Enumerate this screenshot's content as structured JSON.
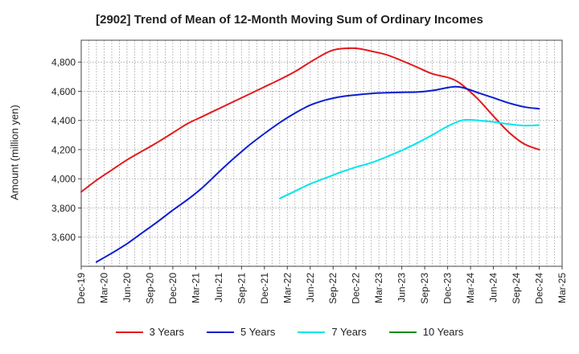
{
  "chart_data": {
    "type": "line",
    "title": "[2902]  Trend of Mean of 12-Month Moving Sum of Ordinary Incomes",
    "xlabel": "",
    "ylabel": "Amount (million yen)",
    "ylim": [
      3400,
      4950
    ],
    "yticks": [
      3600,
      3800,
      4000,
      4200,
      4400,
      4600,
      4800
    ],
    "ytick_labels": [
      "3,600",
      "3,800",
      "4,000",
      "4,200",
      "4,400",
      "4,600",
      "4,800"
    ],
    "xlim": [
      0,
      63
    ],
    "xticks": [
      0,
      3,
      6,
      9,
      12,
      15,
      18,
      21,
      24,
      27,
      30,
      33,
      36,
      39,
      42,
      45,
      48,
      51,
      54,
      57,
      60,
      63
    ],
    "xtick_labels": [
      "Dec-19",
      "Mar-20",
      "Jun-20",
      "Sep-20",
      "Dec-20",
      "Mar-21",
      "Jun-21",
      "Sep-21",
      "Dec-21",
      "Mar-22",
      "Jun-22",
      "Sep-22",
      "Dec-22",
      "Mar-23",
      "Jun-23",
      "Sep-23",
      "Dec-23",
      "Mar-24",
      "Jun-24",
      "Sep-24",
      "Dec-24",
      "Mar-25"
    ],
    "grid": true,
    "legend_position": "bottom",
    "series": [
      {
        "name": "3 Years",
        "color": "#e31a1c",
        "x": [
          0,
          2,
          4,
          6,
          8,
          10,
          12,
          14,
          16,
          18,
          20,
          22,
          24,
          26,
          28,
          30,
          32,
          33,
          34,
          36,
          38,
          40,
          42,
          44,
          46,
          48,
          49,
          50,
          52,
          54,
          56,
          58,
          60
        ],
        "values": [
          3910,
          3990,
          4060,
          4130,
          4190,
          4250,
          4315,
          4380,
          4430,
          4480,
          4530,
          4580,
          4630,
          4680,
          4735,
          4800,
          4860,
          4882,
          4892,
          4895,
          4875,
          4850,
          4810,
          4765,
          4720,
          4695,
          4675,
          4640,
          4545,
          4430,
          4320,
          4240,
          4200
        ]
      },
      {
        "name": "5 Years",
        "color": "#0a1ed0",
        "x": [
          2,
          4,
          6,
          8,
          10,
          12,
          14,
          16,
          18,
          20,
          22,
          24,
          26,
          28,
          30,
          32,
          34,
          36,
          38,
          40,
          42,
          44,
          46,
          48,
          49,
          50,
          52,
          54,
          56,
          58,
          60
        ],
        "values": [
          3430,
          3490,
          3555,
          3630,
          3705,
          3785,
          3860,
          3945,
          4045,
          4140,
          4230,
          4310,
          4385,
          4450,
          4505,
          4540,
          4563,
          4575,
          4585,
          4590,
          4593,
          4595,
          4605,
          4625,
          4632,
          4625,
          4590,
          4555,
          4520,
          4493,
          4480
        ]
      },
      {
        "name": "7 Years",
        "color": "#00e5ee",
        "x": [
          26,
          28,
          30,
          32,
          34,
          36,
          38,
          40,
          42,
          44,
          46,
          48,
          50,
          52,
          54,
          56,
          58,
          60
        ],
        "values": [
          3865,
          3915,
          3965,
          4005,
          4045,
          4080,
          4110,
          4150,
          4195,
          4245,
          4300,
          4360,
          4402,
          4400,
          4390,
          4375,
          4365,
          4368
        ]
      },
      {
        "name": "10 Years",
        "color": "#1a8a1a",
        "x": [],
        "values": []
      }
    ]
  }
}
